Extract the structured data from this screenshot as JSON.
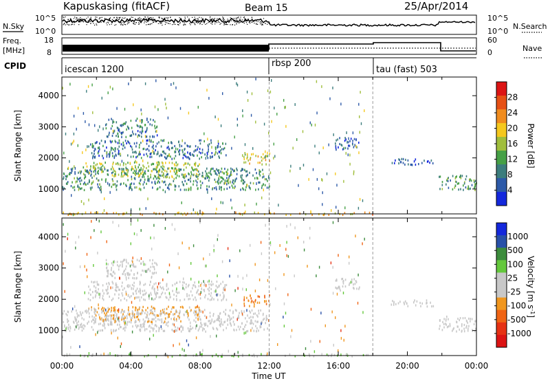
{
  "header": {
    "station": "Kapuskasing (fitACF)",
    "beam": "Beam 15",
    "date": "25/Apr/2014"
  },
  "panels": {
    "nsky": {
      "label": "N.Sky",
      "right_label": "N.Search",
      "left_ticks": [
        "10^5",
        "10^0"
      ],
      "right_ticks": [
        "10^5",
        "10^0"
      ]
    },
    "freq": {
      "label": "Freq.",
      "unit": "[MHz]",
      "right_label": "Nave",
      "left_ticks": [
        "18",
        "8"
      ],
      "right_ticks": [
        "60",
        "0"
      ]
    },
    "cpid": {
      "label": "CPID",
      "modes": [
        {
          "name": "icescan 1200",
          "start_hour": 0
        },
        {
          "name": "rbsp 200",
          "start_hour": 12
        },
        {
          "name": "tau (fast) 503",
          "start_hour": 18
        }
      ]
    }
  },
  "chart_data": [
    {
      "type": "heatmap",
      "title": "",
      "xlabel": "",
      "ylabel": "Slant Range [km]",
      "xlim": [
        0,
        24
      ],
      "ylim": [
        200,
        4600
      ],
      "x_ticks": [
        "00:00",
        "04:00",
        "08:00",
        "12:00",
        "16:00",
        "20:00",
        "00:00"
      ],
      "y_ticks": [
        1000,
        2000,
        3000,
        4000
      ],
      "colorbar": {
        "label": "Power [dB]",
        "range": [
          0,
          32
        ],
        "ticks": [
          4,
          8,
          12,
          16,
          20,
          24,
          28
        ],
        "colors": [
          "#1428dc",
          "#2d5aa8",
          "#3c7d7d",
          "#46a046",
          "#a0be3c",
          "#f5c81e",
          "#f08c1e",
          "#e65014",
          "#dc1414"
        ]
      },
      "regions": [
        {
          "t0": 0.0,
          "t1": 12.0,
          "r0": 1000,
          "r1": 1700,
          "value": 10
        },
        {
          "t0": 1.2,
          "t1": 8.0,
          "r0": 1400,
          "r1": 1900,
          "value": 16
        },
        {
          "t0": 1.5,
          "t1": 9.5,
          "r0": 2000,
          "r1": 2600,
          "value": 7
        },
        {
          "t0": 2.5,
          "t1": 5.5,
          "r0": 2700,
          "r1": 3300,
          "value": 8
        },
        {
          "t0": 10.5,
          "t1": 12.0,
          "r0": 1800,
          "r1": 2200,
          "value": 18
        },
        {
          "t0": 9.0,
          "t1": 9.8,
          "r0": 1200,
          "r1": 1600,
          "value": 14
        },
        {
          "t0": 15.8,
          "t1": 17.2,
          "r0": 2300,
          "r1": 2700,
          "value": 6
        },
        {
          "t0": 19.0,
          "t1": 21.6,
          "r0": 1800,
          "r1": 2000,
          "value": 6
        },
        {
          "t0": 21.8,
          "t1": 24.0,
          "r0": 1000,
          "r1": 1500,
          "value": 11
        },
        {
          "t0": 0.0,
          "t1": 18.0,
          "r0": 200,
          "r1": 280,
          "value": 20
        }
      ]
    },
    {
      "type": "heatmap",
      "title": "",
      "xlabel": "Time UT",
      "ylabel": "Slant Range [km]",
      "xlim": [
        0,
        24
      ],
      "ylim": [
        200,
        4600
      ],
      "x_ticks": [
        "00:00",
        "04:00",
        "08:00",
        "12:00",
        "16:00",
        "20:00",
        "00:00"
      ],
      "y_ticks": [
        1000,
        2000,
        3000,
        4000
      ],
      "colorbar": {
        "label": "Velocity [m s^-1]",
        "range": [
          -1200,
          1200
        ],
        "ticks": [
          1000,
          500,
          100,
          25,
          -25,
          -100,
          -500,
          -1000
        ],
        "colors": [
          "#1428dc",
          "#2850a8",
          "#3c8c3c",
          "#64c83c",
          "#c8c8c8",
          "#c8c8c8",
          "#f0961e",
          "#f06414",
          "#e63214",
          "#dc1414"
        ]
      },
      "regions": [
        {
          "t0": 0.0,
          "t1": 12.0,
          "r0": 1000,
          "r1": 1700,
          "value": 0
        },
        {
          "t0": 1.5,
          "t1": 8.0,
          "r0": 1300,
          "r1": 1800,
          "value": -300
        },
        {
          "t0": 1.5,
          "t1": 9.5,
          "r0": 2000,
          "r1": 2600,
          "value": 0
        },
        {
          "t0": 2.5,
          "t1": 5.5,
          "r0": 2700,
          "r1": 3300,
          "value": 0
        },
        {
          "t0": 10.5,
          "t1": 12.0,
          "r0": 1800,
          "r1": 2200,
          "value": -500
        },
        {
          "t0": 9.0,
          "t1": 9.8,
          "r0": 1200,
          "r1": 1600,
          "value": 0
        },
        {
          "t0": 15.8,
          "t1": 17.2,
          "r0": 2300,
          "r1": 2700,
          "value": 0
        },
        {
          "t0": 19.0,
          "t1": 21.6,
          "r0": 1800,
          "r1": 2000,
          "value": 0
        },
        {
          "t0": 21.8,
          "t1": 24.0,
          "r0": 1000,
          "r1": 1500,
          "value": 0
        },
        {
          "t0": 0.0,
          "t1": 18.0,
          "r0": 200,
          "r1": 280,
          "value": 200
        }
      ]
    }
  ]
}
